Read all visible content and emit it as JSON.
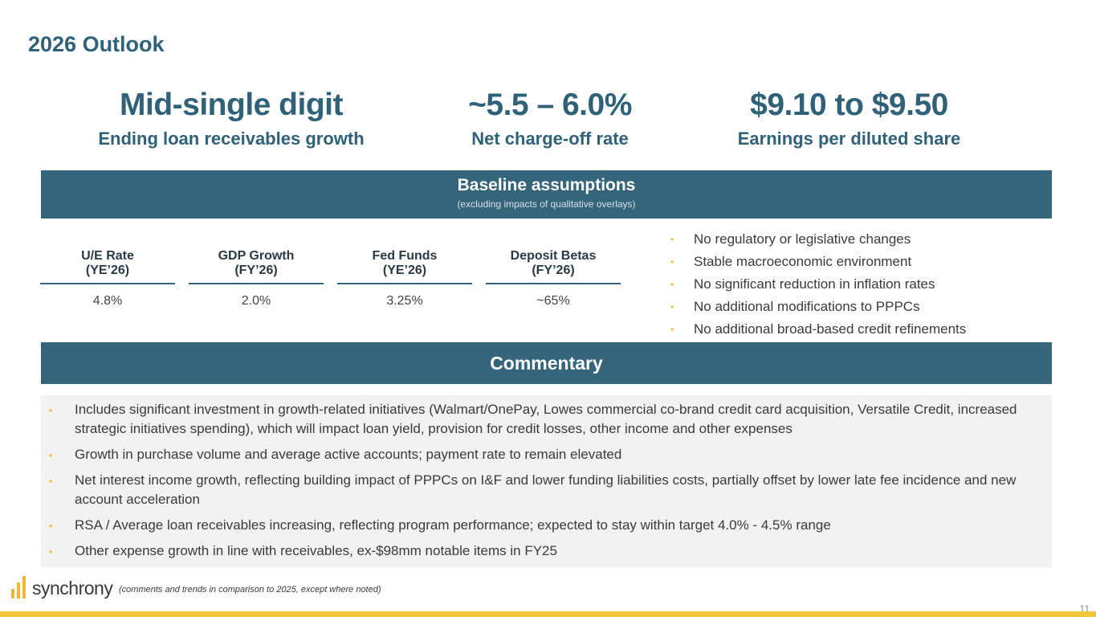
{
  "title": "2026 Outlook",
  "kpis": [
    {
      "value": "Mid-single digit",
      "label": "Ending loan receivables growth"
    },
    {
      "value": "~5.5 – 6.0%",
      "label": "Net charge-off rate"
    },
    {
      "value": "$9.10 to $9.50",
      "label": "Earnings per diluted share"
    }
  ],
  "baseline": {
    "title": "Baseline assumptions",
    "subtitle": "(excluding impacts of qualitative overlays)",
    "metrics": [
      {
        "label_line1": "U/E Rate",
        "label_line2": "(YE’26)",
        "value": "4.8%"
      },
      {
        "label_line1": "GDP Growth",
        "label_line2": "(FY’26)",
        "value": "2.0%"
      },
      {
        "label_line1": "Fed Funds",
        "label_line2": "(YE’26)",
        "value": "3.25%"
      },
      {
        "label_line1": "Deposit Betas",
        "label_line2": "(FY’26)",
        "value": "~65%"
      }
    ],
    "assumptions": [
      "No regulatory or legislative changes",
      "Stable macroeconomic environment",
      "No significant reduction in inflation rates",
      "No additional modifications to PPPCs",
      "No additional broad-based credit refinements"
    ]
  },
  "commentary": {
    "title": "Commentary",
    "items": [
      "Includes significant investment in growth-related initiatives (Walmart/OnePay, Lowes commercial co-brand credit card acquisition, Versatile Credit, increased strategic initiatives spending), which will impact loan yield, provision for credit losses, other income and other expenses",
      "Growth in purchase volume and average active accounts; payment rate to remain elevated",
      "Net interest income growth, reflecting building impact of PPPCs on I&F and lower funding liabilities costs, partially offset by lower late fee incidence and new account acceleration",
      "RSA / Average loan receivables increasing, reflecting program performance; expected to stay within target 4.0% - 4.5% range",
      "Other expense growth in line with receivables, ex-$98mm notable items in FY25"
    ]
  },
  "footer": {
    "logo_text": "synchrony",
    "note": "(comments and trends in comparison to 2025, except where noted)",
    "page_number": "11"
  },
  "colors": {
    "brand_teal": "#34657b",
    "accent_gold": "#f2b632",
    "panel_gray": "#f2f2f2"
  },
  "icons": {
    "bullet": "•"
  }
}
